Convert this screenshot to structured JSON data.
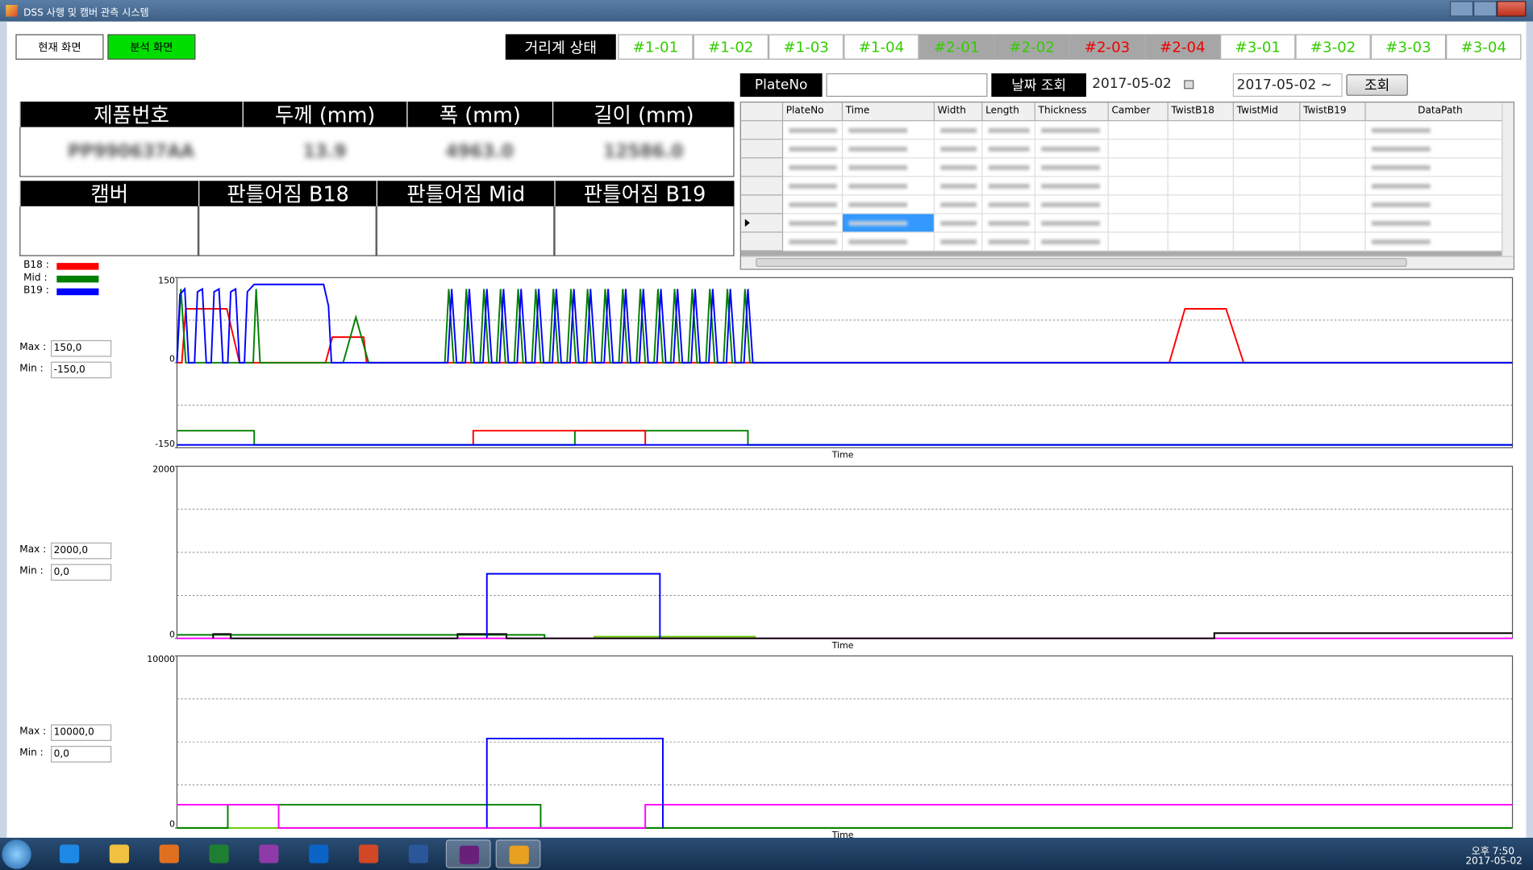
{
  "window": {
    "title": "DSS 사행 및 캠버 관측 시스템"
  },
  "nav": {
    "current": "현재 화면",
    "analysis": "분석 화면"
  },
  "status": {
    "label": "거리계 상태",
    "tabs": [
      {
        "label": "#1-01",
        "color": "#33cc00",
        "bg": "#ffffff"
      },
      {
        "label": "#1-02",
        "color": "#33cc00",
        "bg": "#ffffff"
      },
      {
        "label": "#1-03",
        "color": "#33cc00",
        "bg": "#ffffff"
      },
      {
        "label": "#1-04",
        "color": "#33cc00",
        "bg": "#ffffff"
      },
      {
        "label": "#2-01",
        "color": "#33cc00",
        "bg": "#a6a6a6"
      },
      {
        "label": "#2-02",
        "color": "#33cc00",
        "bg": "#a6a6a6"
      },
      {
        "label": "#2-03",
        "color": "#ee0000",
        "bg": "#a6a6a6"
      },
      {
        "label": "#2-04",
        "color": "#ee0000",
        "bg": "#a6a6a6"
      },
      {
        "label": "#3-01",
        "color": "#33cc00",
        "bg": "#ffffff"
      },
      {
        "label": "#3-02",
        "color": "#33cc00",
        "bg": "#ffffff"
      },
      {
        "label": "#3-03",
        "color": "#33cc00",
        "bg": "#ffffff"
      },
      {
        "label": "#3-04",
        "color": "#33cc00",
        "bg": "#ffffff"
      }
    ]
  },
  "search": {
    "plate_label": "PlateNo",
    "date_label": "날짜 조회",
    "date_from": "2017-05-02",
    "date_to": "2017-05-02 ~",
    "button": "조회"
  },
  "product": {
    "headers": [
      "제품번호",
      "두께 (mm)",
      "폭 (mm)",
      "길이 (mm)"
    ],
    "values": [
      "PP990637AA",
      "13.9",
      "4963.0",
      "12586.0"
    ]
  },
  "twist": {
    "headers": [
      "캠버",
      "판틀어짐 B18",
      "판틀어짐 Mid",
      "판틀어짐 B19"
    ]
  },
  "grid": {
    "columns": [
      "PlateNo",
      "Time",
      "Width",
      "Length",
      "Thickness",
      "Camber",
      "TwistB18",
      "TwistMid",
      "TwistB19",
      "DataPath"
    ]
  },
  "legend": [
    {
      "label": "B18 :",
      "color": "#ff0000"
    },
    {
      "label": "Mid :",
      "color": "#008000"
    },
    {
      "label": "B19 :",
      "color": "#0000ff"
    }
  ],
  "range_controls": [
    {
      "max_label": "Max :",
      "max": "150,0",
      "min_label": "Min :",
      "min": "-150,0"
    },
    {
      "max_label": "Max :",
      "max": "2000,0",
      "min_label": "Min :",
      "min": "0,0"
    },
    {
      "max_label": "Max :",
      "max": "10000,0",
      "min_label": "Min :",
      "min": "0,0"
    }
  ],
  "taskbar": {
    "time": "오후 7:50",
    "date": "2017-05-02"
  },
  "chart_data": [
    {
      "type": "line",
      "xlabel": "Time",
      "xlim": [
        0,
        1366
      ],
      "ylim": [
        -150,
        150
      ],
      "yticks": [
        -150,
        0,
        150
      ],
      "series": [
        {
          "color": "#ff0000",
          "x": [
            0,
            5,
            9,
            51,
            64,
            152,
            159,
            191,
            194,
            1015,
            1031,
            1073,
            1091,
            1366
          ],
          "values": [
            0,
            0,
            95,
            95,
            0,
            0,
            45,
            45,
            0,
            0,
            95,
            95,
            0,
            0
          ]
        },
        {
          "color": "#008000",
          "x": [
            0,
            4,
            9,
            78,
            81,
            85,
            170,
            183,
            196,
            274,
            278,
            283,
            292,
            296,
            301,
            310,
            314,
            319,
            327,
            331,
            336,
            345,
            349,
            354,
            363,
            367,
            372,
            381,
            385,
            390,
            399,
            403,
            408,
            416,
            420,
            425,
            434,
            438,
            443,
            452,
            456,
            461,
            470,
            474,
            479,
            488,
            492,
            497,
            505,
            509,
            514,
            523,
            527,
            532,
            541,
            545,
            550,
            559,
            563,
            568,
            577,
            581,
            586,
            1366
          ],
          "values": [
            0,
            130,
            0,
            0,
            130,
            0,
            0,
            80,
            0,
            0,
            130,
            0,
            0,
            130,
            0,
            0,
            130,
            0,
            0,
            130,
            0,
            0,
            130,
            0,
            0,
            130,
            0,
            0,
            130,
            0,
            0,
            130,
            0,
            0,
            130,
            0,
            0,
            130,
            0,
            0,
            130,
            0,
            0,
            130,
            0,
            0,
            130,
            0,
            0,
            130,
            0,
            0,
            130,
            0,
            0,
            130,
            0,
            0,
            130,
            0,
            0,
            130,
            0,
            0
          ]
        },
        {
          "color": "#0000ff",
          "x": [
            0,
            3,
            8,
            12,
            18,
            21,
            26,
            30,
            35,
            38,
            43,
            47,
            52,
            55,
            60,
            64,
            69,
            72,
            79,
            150,
            155,
            158,
            277,
            281,
            286,
            295,
            299,
            304,
            313,
            317,
            322,
            330,
            334,
            339,
            348,
            352,
            357,
            366,
            370,
            375,
            384,
            388,
            393,
            402,
            406,
            411,
            419,
            423,
            428,
            437,
            441,
            446,
            455,
            459,
            464,
            473,
            477,
            482,
            491,
            495,
            500,
            508,
            512,
            517,
            526,
            530,
            535,
            544,
            548,
            553,
            562,
            566,
            571,
            580,
            584,
            589,
            1366
          ],
          "values": [
            0,
            120,
            130,
            0,
            0,
            125,
            130,
            0,
            0,
            125,
            130,
            0,
            0,
            125,
            130,
            0,
            0,
            125,
            138,
            138,
            100,
            0,
            0,
            130,
            0,
            0,
            130,
            0,
            0,
            130,
            0,
            0,
            130,
            0,
            0,
            130,
            0,
            0,
            130,
            0,
            0,
            130,
            0,
            0,
            130,
            0,
            0,
            130,
            0,
            0,
            130,
            0,
            0,
            130,
            0,
            0,
            130,
            0,
            0,
            130,
            0,
            0,
            130,
            0,
            0,
            130,
            0,
            0,
            130,
            0,
            0,
            130,
            0,
            0,
            130,
            0,
            0
          ]
        },
        {
          "color": "#008000",
          "x": [
            0,
            79,
            79,
            407,
            407,
            584,
            584,
            1366
          ],
          "values": [
            -120,
            -120,
            -145,
            -145,
            -120,
            -120,
            -145,
            -145
          ]
        },
        {
          "color": "#ff0000",
          "x": [
            303,
            303,
            479,
            479
          ],
          "values": [
            -145,
            -120,
            -120,
            -145
          ]
        },
        {
          "color": "#0000ff",
          "x": [
            0,
            1366
          ],
          "values": [
            -145,
            -145
          ]
        }
      ]
    },
    {
      "type": "line",
      "xlabel": "Time",
      "xlim": [
        0,
        1366
      ],
      "ylim": [
        0,
        2000
      ],
      "yticks": [
        0,
        2000
      ],
      "series": [
        {
          "color": "#ff00ff",
          "x": [
            0,
            1366
          ],
          "values": [
            0,
            0
          ]
        },
        {
          "color": "#008000",
          "x": [
            0,
            376,
            376
          ],
          "values": [
            40,
            40,
            0
          ]
        },
        {
          "color": "#66cc00",
          "x": [
            426,
            592
          ],
          "values": [
            20,
            20
          ]
        },
        {
          "color": "#000000",
          "x": [
            37,
            37,
            55,
            55,
            287,
            287,
            337,
            337,
            1061,
            1061,
            1366
          ],
          "values": [
            0,
            50,
            50,
            0,
            0,
            50,
            50,
            0,
            0,
            60,
            60
          ]
        },
        {
          "color": "#0000ff",
          "x": [
            317,
            317,
            494,
            494
          ],
          "values": [
            0,
            750,
            750,
            0
          ]
        }
      ]
    },
    {
      "type": "line",
      "xlabel": "Time",
      "xlim": [
        0,
        1366
      ],
      "ylim": [
        0,
        10000
      ],
      "yticks": [
        0,
        10000
      ],
      "series": [
        {
          "color": "#66cc00",
          "x": [
            0,
            1366
          ],
          "values": [
            0,
            0
          ]
        },
        {
          "color": "#008000",
          "x": [
            0,
            52,
            52,
            372,
            372,
            1366
          ],
          "values": [
            0,
            0,
            1350,
            1350,
            0,
            0
          ]
        },
        {
          "color": "#ff00ff",
          "x": [
            0,
            104,
            104,
            479,
            479,
            1366
          ],
          "values": [
            1350,
            1350,
            0,
            0,
            1350,
            1350
          ]
        },
        {
          "color": "#0000ff",
          "x": [
            317,
            317,
            497,
            497
          ],
          "values": [
            0,
            5200,
            5200,
            0
          ]
        }
      ]
    }
  ]
}
